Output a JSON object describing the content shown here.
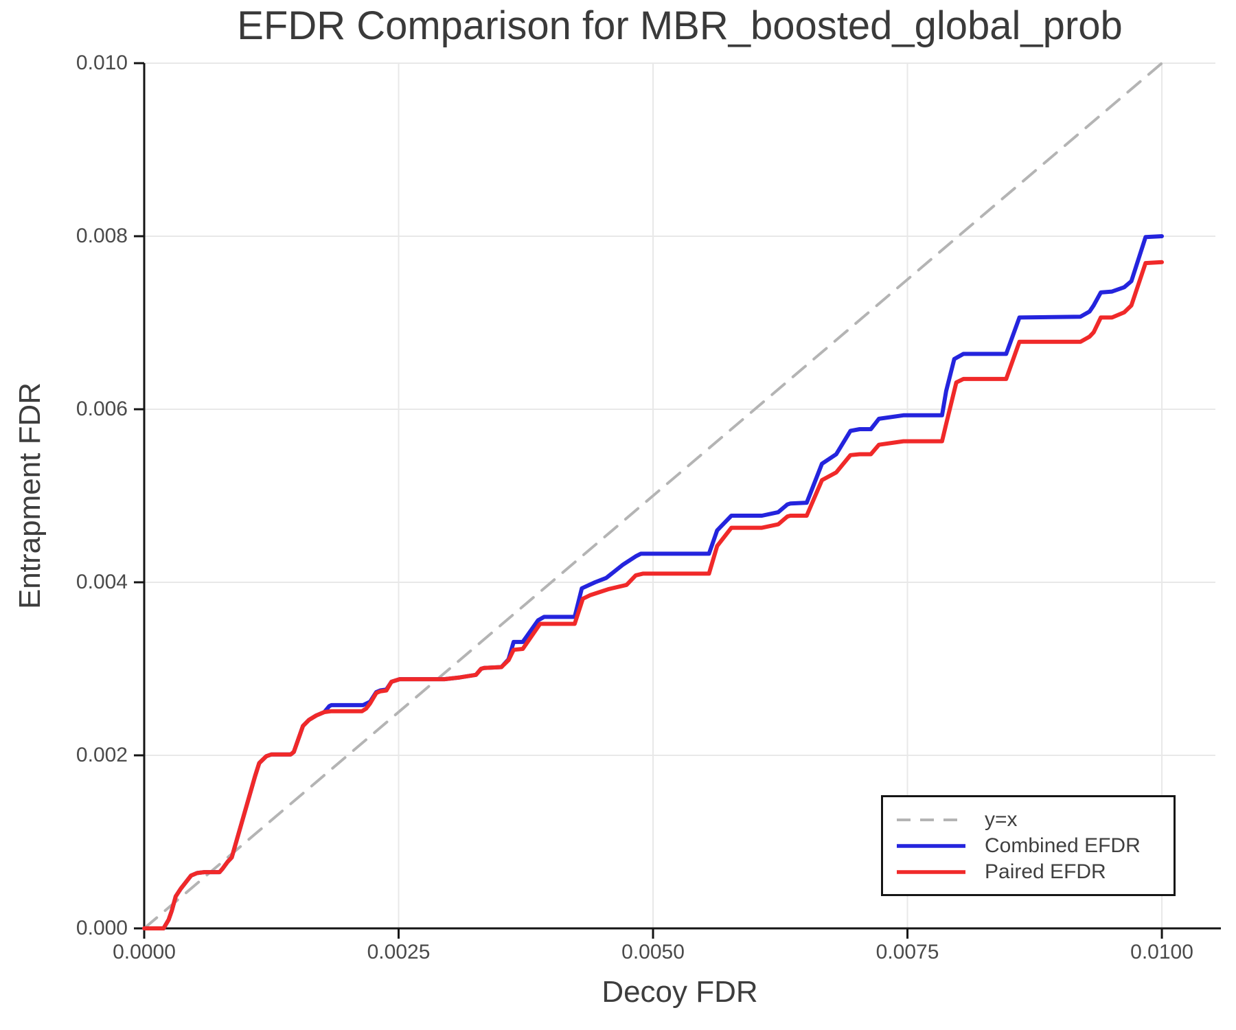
{
  "figure": {
    "title": "EFDR Comparison for MBR_boosted_global_prob",
    "xlabel": "Decoy FDR",
    "ylabel": "Entrapment FDR"
  },
  "colors": {
    "background": "#ffffff",
    "grid": "#e8e8e8",
    "spine": "#141414",
    "tick_text": "#4a4a4a",
    "title_text": "#3a3a3a",
    "identity_line": "#b4b4b4",
    "combined_line": "#2424dd",
    "paired_line": "#f02929",
    "legend_border": "#151515"
  },
  "chart_data": {
    "type": "line",
    "title": "EFDR Comparison for MBR_boosted_global_prob",
    "xlabel": "Decoy FDR",
    "ylabel": "Entrapment FDR",
    "xlim": [
      0,
      0.010526
    ],
    "ylim": [
      0,
      0.01
    ],
    "grid": true,
    "legend_position": "lower right",
    "x_ticks": {
      "values": [
        0.0,
        0.0025,
        0.005,
        0.0075,
        0.01
      ],
      "labels": [
        "0.0000",
        "0.0025",
        "0.0050",
        "0.0075",
        "0.0100"
      ]
    },
    "y_ticks": {
      "values": [
        0.0,
        0.002,
        0.004,
        0.006,
        0.008,
        0.01
      ],
      "labels": [
        "0.000",
        "0.002",
        "0.004",
        "0.006",
        "0.008",
        "0.010"
      ]
    },
    "series": [
      {
        "name": "y=x",
        "color": "#b4b4b4",
        "line_style": "dashed",
        "width": 4,
        "points": [
          [
            0,
            0
          ],
          [
            0.01,
            0.01
          ]
        ]
      },
      {
        "name": "Combined EFDR",
        "color": "#2424dd",
        "line_style": "solid",
        "width": 6,
        "points": [
          [
            0,
            0
          ],
          [
            0.00019,
            0
          ],
          [
            0.00024,
            0.0001
          ],
          [
            0.00027,
            0.0002
          ],
          [
            0.00031,
            0.00037
          ],
          [
            0.00036,
            0.00046
          ],
          [
            0.0004,
            0.00052
          ],
          [
            0.00046,
            0.00061
          ],
          [
            0.00052,
            0.00064
          ],
          [
            0.00059,
            0.00065
          ],
          [
            0.00074,
            0.00065
          ],
          [
            0.00077,
            0.00069
          ],
          [
            0.00082,
            0.00077
          ],
          [
            0.00086,
            0.00082
          ],
          [
            0.00109,
            0.00176
          ],
          [
            0.00113,
            0.00191
          ],
          [
            0.0012,
            0.00199
          ],
          [
            0.00125,
            0.00201
          ],
          [
            0.00144,
            0.00201
          ],
          [
            0.00147,
            0.00204
          ],
          [
            0.00156,
            0.00234
          ],
          [
            0.00162,
            0.00241
          ],
          [
            0.00169,
            0.00246
          ],
          [
            0.00177,
            0.0025
          ],
          [
            0.00182,
            0.00257
          ],
          [
            0.00184,
            0.00258
          ],
          [
            0.00215,
            0.00258
          ],
          [
            0.00222,
            0.00262
          ],
          [
            0.00228,
            0.00273
          ],
          [
            0.00232,
            0.00275
          ],
          [
            0.00238,
            0.00276
          ],
          [
            0.00243,
            0.00285
          ],
          [
            0.00251,
            0.00288
          ],
          [
            0.00295,
            0.00288
          ],
          [
            0.0031,
            0.0029
          ],
          [
            0.00326,
            0.00293
          ],
          [
            0.00331,
            0.003
          ],
          [
            0.00334,
            0.00301
          ],
          [
            0.00351,
            0.00302
          ],
          [
            0.00358,
            0.00311
          ],
          [
            0.00363,
            0.00331
          ],
          [
            0.00372,
            0.00331
          ],
          [
            0.00387,
            0.00356
          ],
          [
            0.00393,
            0.0036
          ],
          [
            0.00423,
            0.0036
          ],
          [
            0.0043,
            0.00393
          ],
          [
            0.00443,
            0.004
          ],
          [
            0.00454,
            0.00405
          ],
          [
            0.0047,
            0.0042
          ],
          [
            0.00483,
            0.0043
          ],
          [
            0.00488,
            0.00433
          ],
          [
            0.00555,
            0.00433
          ],
          [
            0.00563,
            0.0046
          ],
          [
            0.00577,
            0.00477
          ],
          [
            0.00607,
            0.00477
          ],
          [
            0.00623,
            0.00481
          ],
          [
            0.00632,
            0.0049
          ],
          [
            0.00635,
            0.00491
          ],
          [
            0.00651,
            0.00492
          ],
          [
            0.00666,
            0.00537
          ],
          [
            0.0068,
            0.00548
          ],
          [
            0.00694,
            0.00575
          ],
          [
            0.00703,
            0.00577
          ],
          [
            0.00714,
            0.00577
          ],
          [
            0.00722,
            0.00589
          ],
          [
            0.00746,
            0.00593
          ],
          [
            0.00784,
            0.00593
          ],
          [
            0.00788,
            0.00621
          ],
          [
            0.00796,
            0.00658
          ],
          [
            0.00805,
            0.00664
          ],
          [
            0.00847,
            0.00664
          ],
          [
            0.0086,
            0.00706
          ],
          [
            0.0092,
            0.00707
          ],
          [
            0.00929,
            0.00713
          ],
          [
            0.00933,
            0.0072
          ],
          [
            0.0094,
            0.00735
          ],
          [
            0.00951,
            0.00736
          ],
          [
            0.00963,
            0.00741
          ],
          [
            0.0097,
            0.00748
          ],
          [
            0.00984,
            0.00799
          ],
          [
            0.01,
            0.008
          ]
        ]
      },
      {
        "name": "Paired EFDR",
        "color": "#f02929",
        "line_style": "solid",
        "width": 6,
        "points": [
          [
            0,
            0
          ],
          [
            0.00019,
            0
          ],
          [
            0.00024,
            0.0001
          ],
          [
            0.00027,
            0.0002
          ],
          [
            0.00031,
            0.00037
          ],
          [
            0.00036,
            0.00046
          ],
          [
            0.0004,
            0.00052
          ],
          [
            0.00046,
            0.00061
          ],
          [
            0.00052,
            0.00064
          ],
          [
            0.00059,
            0.00065
          ],
          [
            0.00074,
            0.00065
          ],
          [
            0.00077,
            0.00069
          ],
          [
            0.00082,
            0.00077
          ],
          [
            0.00086,
            0.00082
          ],
          [
            0.00109,
            0.00176
          ],
          [
            0.00113,
            0.00191
          ],
          [
            0.0012,
            0.00199
          ],
          [
            0.00125,
            0.00201
          ],
          [
            0.00144,
            0.00201
          ],
          [
            0.00147,
            0.00204
          ],
          [
            0.00156,
            0.00234
          ],
          [
            0.00162,
            0.00241
          ],
          [
            0.00169,
            0.00246
          ],
          [
            0.00177,
            0.0025
          ],
          [
            0.00184,
            0.00251
          ],
          [
            0.00214,
            0.00251
          ],
          [
            0.00218,
            0.00254
          ],
          [
            0.00222,
            0.0026
          ],
          [
            0.00228,
            0.00272
          ],
          [
            0.00232,
            0.00274
          ],
          [
            0.00238,
            0.00275
          ],
          [
            0.00243,
            0.00285
          ],
          [
            0.00251,
            0.00288
          ],
          [
            0.00295,
            0.00288
          ],
          [
            0.0031,
            0.0029
          ],
          [
            0.00326,
            0.00293
          ],
          [
            0.00331,
            0.003
          ],
          [
            0.00334,
            0.00301
          ],
          [
            0.00351,
            0.00302
          ],
          [
            0.00358,
            0.0031
          ],
          [
            0.00363,
            0.00322
          ],
          [
            0.00372,
            0.00323
          ],
          [
            0.00389,
            0.00352
          ],
          [
            0.00423,
            0.00352
          ],
          [
            0.00431,
            0.00381
          ],
          [
            0.00438,
            0.00385
          ],
          [
            0.00456,
            0.00392
          ],
          [
            0.00474,
            0.00397
          ],
          [
            0.00483,
            0.00408
          ],
          [
            0.0049,
            0.0041
          ],
          [
            0.00555,
            0.0041
          ],
          [
            0.00563,
            0.00442
          ],
          [
            0.00577,
            0.00463
          ],
          [
            0.00607,
            0.00463
          ],
          [
            0.00623,
            0.00467
          ],
          [
            0.00632,
            0.00476
          ],
          [
            0.00635,
            0.00477
          ],
          [
            0.00651,
            0.00477
          ],
          [
            0.00666,
            0.00518
          ],
          [
            0.0068,
            0.00527
          ],
          [
            0.00694,
            0.00547
          ],
          [
            0.00703,
            0.00548
          ],
          [
            0.00714,
            0.00548
          ],
          [
            0.00722,
            0.00559
          ],
          [
            0.00746,
            0.00563
          ],
          [
            0.00784,
            0.00563
          ],
          [
            0.00788,
            0.00583
          ],
          [
            0.00798,
            0.00631
          ],
          [
            0.00805,
            0.00635
          ],
          [
            0.00847,
            0.00635
          ],
          [
            0.0086,
            0.00678
          ],
          [
            0.0092,
            0.00678
          ],
          [
            0.00929,
            0.00684
          ],
          [
            0.00933,
            0.00689
          ],
          [
            0.0094,
            0.00706
          ],
          [
            0.00951,
            0.00706
          ],
          [
            0.00963,
            0.00712
          ],
          [
            0.0097,
            0.0072
          ],
          [
            0.00984,
            0.00769
          ],
          [
            0.01,
            0.0077
          ]
        ]
      }
    ]
  }
}
